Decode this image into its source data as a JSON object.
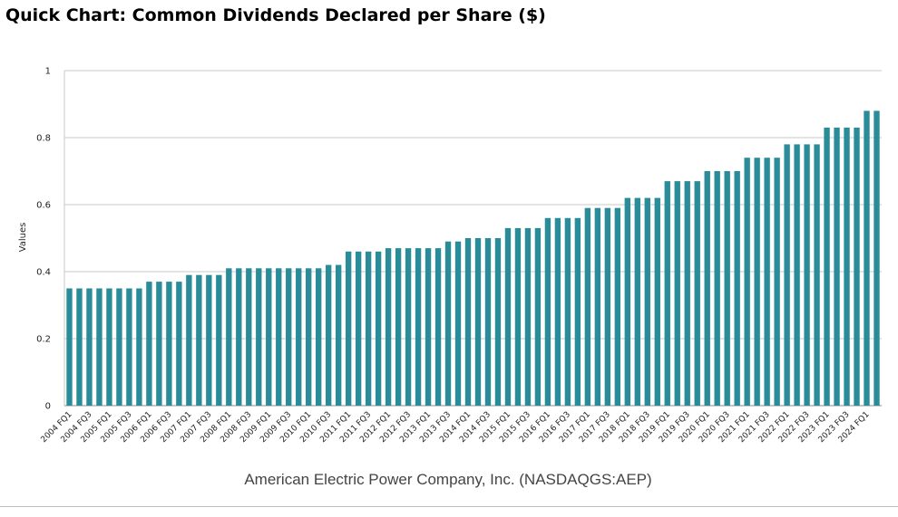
{
  "title": "Quick Chart: Common Dividends Declared per Share ($)",
  "colors": {
    "bar": "#2b8c99",
    "grid": "#c9c9c9",
    "axis": "#888888"
  },
  "chart_data": {
    "type": "bar",
    "ylabel": "Values",
    "xlabel": "American Electric Power Company, Inc. (NASDAQGS:AEP)",
    "ylim": [
      0,
      1
    ],
    "yticks": [
      0,
      0.2,
      0.4,
      0.6,
      0.8,
      1
    ],
    "yticklabels": [
      "0",
      "0.2",
      "0.4",
      "0.6",
      "0.8",
      "1"
    ],
    "grid": true,
    "categories": [
      "2004 FQ1",
      "2004 FQ2",
      "2004 FQ3",
      "2004 FQ4",
      "2005 FQ1",
      "2005 FQ2",
      "2005 FQ3",
      "2005 FQ4",
      "2006 FQ1",
      "2006 FQ2",
      "2006 FQ3",
      "2006 FQ4",
      "2007 FQ1",
      "2007 FQ2",
      "2007 FQ3",
      "2007 FQ4",
      "2008 FQ1",
      "2008 FQ2",
      "2008 FQ3",
      "2008 FQ4",
      "2009 FQ1",
      "2009 FQ2",
      "2009 FQ3",
      "2009 FQ4",
      "2010 FQ1",
      "2010 FQ2",
      "2010 FQ3",
      "2010 FQ4",
      "2011 FQ1",
      "2011 FQ2",
      "2011 FQ3",
      "2011 FQ4",
      "2012 FQ1",
      "2012 FQ2",
      "2012 FQ3",
      "2012 FQ4",
      "2013 FQ1",
      "2013 FQ2",
      "2013 FQ3",
      "2013 FQ4",
      "2014 FQ1",
      "2014 FQ2",
      "2014 FQ3",
      "2014 FQ4",
      "2015 FQ1",
      "2015 FQ2",
      "2015 FQ3",
      "2015 FQ4",
      "2016 FQ1",
      "2016 FQ2",
      "2016 FQ3",
      "2016 FQ4",
      "2017 FQ1",
      "2017 FQ2",
      "2017 FQ3",
      "2017 FQ4",
      "2018 FQ1",
      "2018 FQ2",
      "2018 FQ3",
      "2018 FQ4",
      "2019 FQ1",
      "2019 FQ2",
      "2019 FQ3",
      "2019 FQ4",
      "2020 FQ1",
      "2020 FQ2",
      "2020 FQ3",
      "2020 FQ4",
      "2021 FQ1",
      "2021 FQ2",
      "2021 FQ3",
      "2021 FQ4",
      "2022 FQ1",
      "2022 FQ2",
      "2022 FQ3",
      "2022 FQ4",
      "2023 FQ1",
      "2023 FQ2",
      "2023 FQ3",
      "2023 FQ4",
      "2024 FQ1",
      "2024 FQ2"
    ],
    "xticklabels": [
      "2004 FQ1",
      "2004 FQ3",
      "2005 FQ1",
      "2005 FQ3",
      "2006 FQ1",
      "2006 FQ3",
      "2007 FQ1",
      "2007 FQ3",
      "2008 FQ1",
      "2008 FQ3",
      "2009 FQ1",
      "2009 FQ3",
      "2010 FQ1",
      "2010 FQ3",
      "2011 FQ1",
      "2011 FQ3",
      "2012 FQ1",
      "2012 FQ3",
      "2013 FQ1",
      "2013 FQ3",
      "2014 FQ1",
      "2014 FQ3",
      "2015 FQ1",
      "2015 FQ3",
      "2016 FQ1",
      "2016 FQ3",
      "2017 FQ1",
      "2017 FQ3",
      "2018 FQ1",
      "2018 FQ3",
      "2019 FQ1",
      "2019 FQ3",
      "2020 FQ1",
      "2020 FQ3",
      "2021 FQ1",
      "2021 FQ3",
      "2022 FQ1",
      "2022 FQ3",
      "2023 FQ1",
      "2023 FQ3",
      "2024 FQ1"
    ],
    "values": [
      0.35,
      0.35,
      0.35,
      0.35,
      0.35,
      0.35,
      0.35,
      0.35,
      0.37,
      0.37,
      0.37,
      0.37,
      0.39,
      0.39,
      0.39,
      0.39,
      0.41,
      0.41,
      0.41,
      0.41,
      0.41,
      0.41,
      0.41,
      0.41,
      0.41,
      0.41,
      0.42,
      0.42,
      0.46,
      0.46,
      0.46,
      0.46,
      0.47,
      0.47,
      0.47,
      0.47,
      0.47,
      0.47,
      0.49,
      0.49,
      0.5,
      0.5,
      0.5,
      0.5,
      0.53,
      0.53,
      0.53,
      0.53,
      0.56,
      0.56,
      0.56,
      0.56,
      0.59,
      0.59,
      0.59,
      0.59,
      0.62,
      0.62,
      0.62,
      0.62,
      0.67,
      0.67,
      0.67,
      0.67,
      0.7,
      0.7,
      0.7,
      0.7,
      0.74,
      0.74,
      0.74,
      0.74,
      0.78,
      0.78,
      0.78,
      0.78,
      0.83,
      0.83,
      0.83,
      0.83,
      0.88,
      0.88
    ]
  }
}
